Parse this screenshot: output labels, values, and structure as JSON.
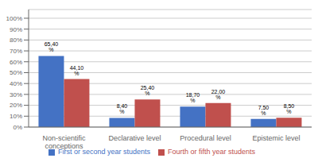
{
  "chart_data": {
    "type": "bar",
    "categories": [
      "Non-scientific\nconceptions",
      "Declarative level",
      "Procedural level",
      "Epistemic level"
    ],
    "series": [
      {
        "name": "First or second year students",
        "color": "#4472C4",
        "values": [
          65.4,
          8.4,
          18.7,
          7.5
        ],
        "value_labels": [
          "65,40 %",
          "8,40 %",
          "18,70 %",
          "7,50 %"
        ]
      },
      {
        "name": "Fourth or fifth year students",
        "color": "#C0504D",
        "values": [
          44.1,
          25.4,
          22.0,
          8.5
        ],
        "value_labels": [
          "44,10 %",
          "25,40 %",
          "22,00 %",
          "8,50 %"
        ]
      }
    ],
    "ylim": [
      0,
      108
    ],
    "yticks": [
      {
        "value": 0,
        "label": "0%"
      },
      {
        "value": 10,
        "label": "10%"
      },
      {
        "value": 20,
        "label": "20%"
      },
      {
        "value": 30,
        "label": "30%"
      },
      {
        "value": 40,
        "label": "40%"
      },
      {
        "value": 50,
        "label": "50%"
      },
      {
        "value": 60,
        "label": "60%"
      },
      {
        "value": 70,
        "label": "70%"
      },
      {
        "value": 80,
        "label": "80%"
      },
      {
        "value": 90,
        "label": "90%"
      },
      {
        "value": 100,
        "label": "100%"
      }
    ],
    "grid": true,
    "legend": "bottom",
    "data_labels": true
  }
}
